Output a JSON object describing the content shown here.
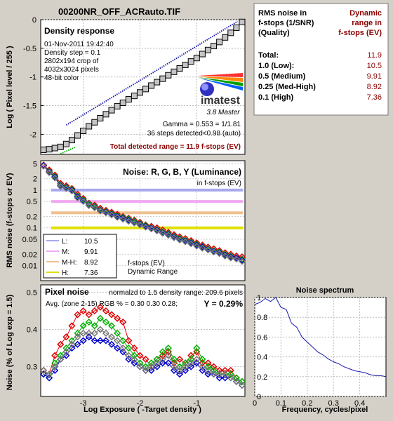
{
  "page_title": "00200NR_OFF_ACRauto.TIF",
  "colors": {
    "background": "#d4d0c8",
    "title": "#6a1a6a",
    "dark_red": "#8b0000",
    "density_blue": "#1a1aaa",
    "marker_gray": "#c4c4c4",
    "red": "#e00000",
    "green": "#00b000",
    "blue": "#0000cc",
    "luminance": "#777777",
    "L": "#a8a8f0",
    "M": "#f0a8f0",
    "MH": "#f0c090",
    "H": "#e0e000",
    "spectrum": "#1a1aaa"
  },
  "density_panel": {
    "title": "Density response",
    "info_lines": [
      "01-Nov-2011 19:42:40",
      "Density step = 0.1",
      "2802x194 crop of",
      "4032x3024 pixels",
      "48-bit color"
    ],
    "logo_text": "imatest",
    "logo_sub": "3.8  Master",
    "gamma_line": "Gamma = 0.553 = 1/1.81",
    "steps_line": "36 steps detected<0.98 (auto)",
    "range_line": "Total detected range = 11.9 f-stops (EV)"
  },
  "noise_table": {
    "col1_header": [
      "RMS noise in",
      "f-stops (1/SNR)",
      "(Quality)"
    ],
    "col2_header": [
      "Dynamic",
      "range in",
      "f-stops (EV)"
    ],
    "rows": [
      {
        "label": "Total:",
        "value": "11.9"
      },
      {
        "label": "1.0   (Low):",
        "value": "10.5"
      },
      {
        "label": "0.5   (Medium)",
        "value": "9.91"
      },
      {
        "label": "0.25 (Med-High)",
        "value": "8.92"
      },
      {
        "label": "0.1   (High)",
        "value": "7.36"
      }
    ]
  },
  "noise_panel": {
    "title": "Noise: R, G, B, Y (Luminance)",
    "subtitle": "in f-stops (EV)",
    "legend": [
      {
        "key": "L",
        "label": "L:",
        "value": "10.5"
      },
      {
        "key": "M",
        "label": "M:",
        "value": "9.91"
      },
      {
        "key": "MH",
        "label": "M-H:",
        "value": "8.92"
      },
      {
        "key": "H",
        "label": "H:",
        "value": "7.36"
      }
    ],
    "legend_note": [
      "f-stops (EV)",
      "Dynamic Range"
    ]
  },
  "pixel_panel": {
    "title": "Pixel noise",
    "norm_line": "normalzd to 1.5 density range: 209.6 pixels",
    "avg_line": "Avg. (zone 2-15) RGB % = 0.30  0.30  0.28;",
    "y_value": "Y = 0.29%"
  },
  "spectrum_panel": {
    "title": "Noise spectrum"
  },
  "chart_data": [
    {
      "type": "line",
      "title": "Density response",
      "ylabel": "Log ( Pixel level / 255 )",
      "xlim": [
        -3.75,
        -0.15
      ],
      "ylim": [
        -2.35,
        0
      ],
      "yticks": [
        0,
        -0.5,
        -1,
        -1.5,
        -2
      ],
      "ytick_labels": [
        "0",
        "-0.5",
        "-1",
        "-1.5",
        "-2"
      ],
      "xticks": [
        -3,
        -2,
        -1
      ],
      "series": [
        {
          "kind": "response",
          "x_start": -3.7,
          "x_step": 0.1,
          "values": [
            -2.27,
            -2.26,
            -2.24,
            -2.22,
            -2.17,
            -2.1,
            -2.02,
            -1.94,
            -1.86,
            -1.79,
            -1.72,
            -1.65,
            -1.58,
            -1.51,
            -1.45,
            -1.39,
            -1.33,
            -1.27,
            -1.21,
            -1.15,
            -1.09,
            -1.03,
            -0.97,
            -0.91,
            -0.85,
            -0.79,
            -0.73,
            -0.67,
            -0.6,
            -0.53,
            -0.46,
            -0.39,
            -0.31,
            -0.23,
            -0.14,
            -0.04
          ]
        },
        {
          "kind": "gamma_fit",
          "x": [
            -3.3,
            -0.28
          ],
          "y": [
            -1.84,
            -0.03
          ]
        },
        {
          "kind": "lower_fit",
          "x": [
            -3.4,
            -3.13
          ],
          "y": [
            -2.34,
            -2.22
          ]
        }
      ]
    },
    {
      "type": "scatter",
      "title": "Noise: R, G, B, Y (Luminance)",
      "ylabel": "RMS noise (f-stops or EV)",
      "yscale": "log",
      "ylim": [
        0.004,
        6
      ],
      "yticks": [
        5,
        2,
        1,
        0.5,
        0.2,
        0.1,
        0.05,
        0.02,
        0.01
      ],
      "ytick_labels": [
        "5",
        "2",
        "1",
        "0.5",
        "0.2",
        "0.1",
        "0.05",
        "0.02",
        "0.01"
      ],
      "reference_lines": [
        1.0,
        0.5,
        0.25,
        0.1
      ],
      "x_start": -3.7,
      "x_step": 0.1,
      "series": [
        {
          "name": "R",
          "values": [
            4.6,
            3.4,
            2.5,
            1.5,
            1.3,
            1.1,
            0.78,
            0.6,
            0.45,
            0.4,
            0.33,
            0.29,
            0.26,
            0.23,
            0.2,
            0.18,
            0.16,
            0.14,
            0.12,
            0.11,
            0.1,
            0.088,
            0.076,
            0.066,
            0.058,
            0.052,
            0.046,
            0.04,
            0.035,
            0.031,
            0.028,
            0.025,
            0.022,
            0.02,
            0.018,
            0.017
          ]
        },
        {
          "name": "G",
          "values": [
            4.4,
            3.1,
            2.3,
            1.35,
            1.2,
            1.05,
            0.7,
            0.55,
            0.43,
            0.37,
            0.3,
            0.27,
            0.24,
            0.21,
            0.19,
            0.17,
            0.15,
            0.13,
            0.115,
            0.1,
            0.09,
            0.078,
            0.07,
            0.06,
            0.053,
            0.047,
            0.042,
            0.037,
            0.032,
            0.028,
            0.025,
            0.023,
            0.02,
            0.018,
            0.016,
            0.015
          ]
        },
        {
          "name": "B",
          "values": [
            4.5,
            3.0,
            2.2,
            1.3,
            1.15,
            1.0,
            0.66,
            0.52,
            0.4,
            0.35,
            0.29,
            0.26,
            0.23,
            0.2,
            0.18,
            0.16,
            0.14,
            0.125,
            0.11,
            0.098,
            0.087,
            0.075,
            0.067,
            0.058,
            0.05,
            0.045,
            0.04,
            0.035,
            0.031,
            0.027,
            0.024,
            0.022,
            0.019,
            0.017,
            0.016,
            0.014
          ]
        },
        {
          "name": "Y",
          "values": [
            4.3,
            2.9,
            2.1,
            1.25,
            1.1,
            0.95,
            0.62,
            0.5,
            0.39,
            0.34,
            0.28,
            0.25,
            0.22,
            0.19,
            0.17,
            0.15,
            0.135,
            0.12,
            0.105,
            0.094,
            0.083,
            0.072,
            0.064,
            0.055,
            0.048,
            0.043,
            0.038,
            0.033,
            0.029,
            0.026,
            0.023,
            0.021,
            0.018,
            0.016,
            0.015,
            0.013
          ]
        }
      ]
    },
    {
      "type": "scatter",
      "title": "Pixel noise",
      "xlabel": "Log Exposure ( -Target density )",
      "ylabel": "Noise (% of Log exp = 1.5)",
      "xlim": [
        -3.75,
        -0.15
      ],
      "ylim": [
        0.22,
        0.52
      ],
      "yticks": [
        0.5,
        0.4,
        0.3
      ],
      "ytick_labels": [
        "0.5",
        "0.4",
        "0.3"
      ],
      "xticks": [
        -3,
        -2,
        -1
      ],
      "xtick_labels": [
        "-3",
        "-2",
        "-1"
      ],
      "x_start": -3.7,
      "x_step": 0.1,
      "series": [
        {
          "name": "R",
          "values": [
            0.29,
            0.28,
            0.33,
            0.36,
            0.38,
            0.41,
            0.44,
            0.45,
            0.44,
            0.45,
            0.46,
            0.45,
            0.44,
            0.43,
            0.42,
            0.37,
            0.35,
            0.33,
            0.32,
            0.3,
            0.32,
            0.33,
            0.34,
            0.31,
            0.32,
            0.31,
            0.33,
            0.34,
            0.31,
            0.31,
            0.3,
            0.29,
            0.29,
            0.29,
            0.27,
            0.26
          ]
        },
        {
          "name": "G",
          "values": [
            0.28,
            0.27,
            0.31,
            0.33,
            0.35,
            0.37,
            0.39,
            0.41,
            0.42,
            0.41,
            0.43,
            0.42,
            0.41,
            0.39,
            0.37,
            0.35,
            0.33,
            0.31,
            0.3,
            0.31,
            0.32,
            0.34,
            0.35,
            0.32,
            0.3,
            0.31,
            0.32,
            0.35,
            0.32,
            0.3,
            0.29,
            0.28,
            0.28,
            0.28,
            0.27,
            0.26
          ]
        },
        {
          "name": "B",
          "values": [
            0.28,
            0.27,
            0.29,
            0.32,
            0.33,
            0.35,
            0.36,
            0.37,
            0.38,
            0.37,
            0.37,
            0.37,
            0.36,
            0.35,
            0.34,
            0.32,
            0.31,
            0.3,
            0.29,
            0.29,
            0.3,
            0.31,
            0.31,
            0.29,
            0.28,
            0.29,
            0.3,
            0.31,
            0.29,
            0.28,
            0.28,
            0.27,
            0.27,
            0.27,
            0.26,
            0.25
          ]
        },
        {
          "name": "Y",
          "values": [
            0.29,
            0.28,
            0.3,
            0.32,
            0.34,
            0.36,
            0.38,
            0.39,
            0.39,
            0.39,
            0.4,
            0.39,
            0.38,
            0.37,
            0.35,
            0.33,
            0.32,
            0.3,
            0.29,
            0.3,
            0.31,
            0.32,
            0.33,
            0.3,
            0.29,
            0.3,
            0.31,
            0.32,
            0.3,
            0.29,
            0.28,
            0.28,
            0.28,
            0.27,
            0.26,
            0.25
          ]
        }
      ]
    },
    {
      "type": "line",
      "title": "Noise spectrum",
      "xlabel": "Frequency, cycles/pixel",
      "xlim": [
        0,
        0.5
      ],
      "ylim": [
        0,
        1
      ],
      "xticks": [
        0,
        0.1,
        0.2,
        0.3,
        0.4
      ],
      "xtick_labels": [
        "0",
        "0.1",
        "0.2",
        "0.3",
        "0.4"
      ],
      "yticks": [
        1,
        0.8,
        0.6,
        0.4,
        0.2,
        0
      ],
      "ytick_labels": [
        "1",
        "0.8",
        "0.6",
        "0.4",
        "0.2",
        "0"
      ],
      "series": [
        {
          "x": [
            0,
            0.02,
            0.04,
            0.06,
            0.08,
            0.1,
            0.12,
            0.14,
            0.16,
            0.18,
            0.2,
            0.22,
            0.24,
            0.26,
            0.28,
            0.3,
            0.32,
            0.34,
            0.36,
            0.38,
            0.4,
            0.42,
            0.44,
            0.46,
            0.48,
            0.5
          ],
          "y": [
            0.93,
            0.95,
            0.99,
            0.96,
            1.0,
            0.9,
            0.88,
            0.74,
            0.7,
            0.6,
            0.55,
            0.5,
            0.45,
            0.42,
            0.38,
            0.35,
            0.33,
            0.3,
            0.28,
            0.26,
            0.25,
            0.24,
            0.22,
            0.21,
            0.21,
            0.2
          ]
        }
      ]
    }
  ]
}
